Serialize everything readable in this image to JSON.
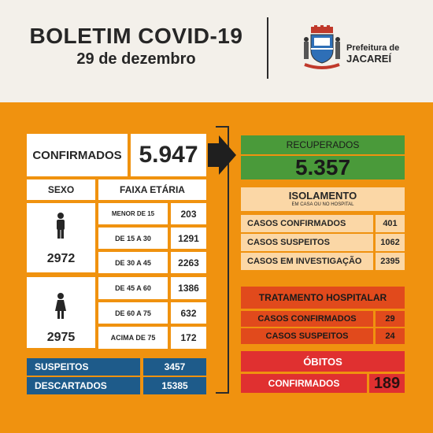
{
  "header": {
    "title": "BOLETIM COVID-19",
    "date": "29 de dezembro",
    "prefeitura_line1": "Prefeitura de",
    "prefeitura_line2": "JACAREÍ"
  },
  "confirmados": {
    "label": "CONFIRMADOS",
    "value": "5.947"
  },
  "table_headers": {
    "sexo": "SEXO",
    "faixa": "FAIXA ETÁRIA"
  },
  "male": {
    "total": "2972",
    "rows": [
      {
        "label": "MENOR DE 15",
        "value": "203"
      },
      {
        "label": "DE 15 A 30",
        "value": "1291"
      },
      {
        "label": "DE 30 A 45",
        "value": "2263"
      }
    ]
  },
  "female": {
    "total": "2975",
    "rows": [
      {
        "label": "DE 45 A 60",
        "value": "1386"
      },
      {
        "label": "DE 60 A 75",
        "value": "632"
      },
      {
        "label": "ACIMA DE 75",
        "value": "172"
      }
    ]
  },
  "suspeitos": {
    "label": "SUSPEITOS",
    "value": "3457"
  },
  "descartados": {
    "label": "DESCARTADOS",
    "value": "15385"
  },
  "recuperados": {
    "label": "RECUPERADOS",
    "value": "5.357"
  },
  "isolamento": {
    "title": "ISOLAMENTO",
    "subtitle": "EM CASA OU NO HOSPITAL",
    "rows": [
      {
        "label": "CASOS CONFIRMADOS",
        "value": "401"
      },
      {
        "label": "CASOS SUSPEITOS",
        "value": "1062"
      },
      {
        "label": "CASOS EM INVESTIGAÇÃO",
        "value": "2395"
      }
    ]
  },
  "tratamento": {
    "title": "TRATAMENTO HOSPITALAR",
    "rows": [
      {
        "label": "CASOS CONFIRMADOS",
        "value": "29"
      },
      {
        "label": "CASOS SUSPEITOS",
        "value": "24"
      }
    ]
  },
  "obitos": {
    "title": "ÓBITOS",
    "label": "CONFIRMADOS",
    "value": "189"
  },
  "colors": {
    "orange": "#f0920f",
    "green": "#4a9a3a",
    "blue": "#1e5b8a",
    "peach": "#fbd7a6",
    "red_orange": "#e14a1c",
    "red": "#e03030"
  },
  "icons": {
    "male": "person-icon",
    "female": "person-dress-icon",
    "arrow": "arrow-right-icon"
  }
}
